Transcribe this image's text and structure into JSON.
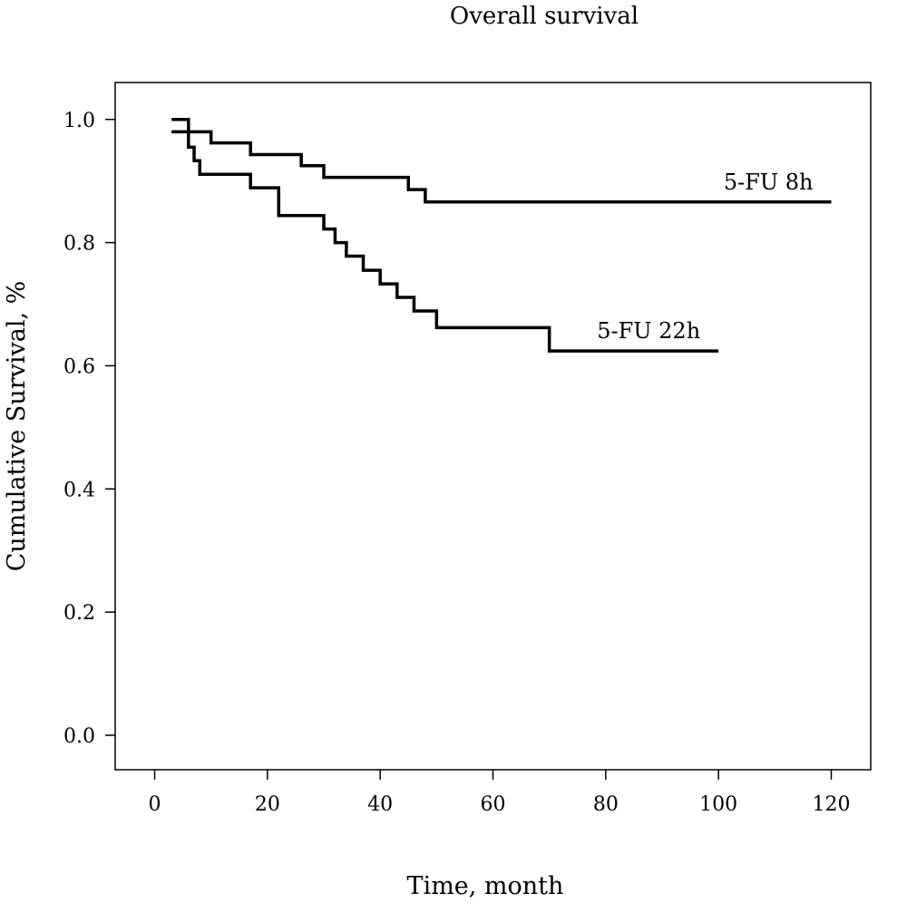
{
  "chart_data": {
    "type": "line",
    "title": "Overall survival",
    "xlabel": "Time, month",
    "ylabel": "Cumulative Survival, %",
    "xlim": [
      -7,
      127
    ],
    "ylim": [
      -0.056,
      1.06
    ],
    "x_ticks": [
      0,
      20,
      40,
      60,
      80,
      100,
      120
    ],
    "y_ticks": [
      0.0,
      0.2,
      0.4,
      0.6,
      0.8,
      1.0
    ],
    "x_tick_labels": [
      "0",
      "20",
      "40",
      "60",
      "80",
      "100",
      "120"
    ],
    "y_tick_labels": [
      "0.0",
      "0.2",
      "0.4",
      "0.6",
      "0.8",
      "1.0"
    ],
    "grid": false,
    "line_color": "#000000",
    "series": [
      {
        "name": "5-FU 8h",
        "step": true,
        "x": [
          3,
          6,
          10,
          17,
          26,
          30,
          45,
          48,
          120
        ],
        "y": [
          0.98,
          0.98,
          0.962,
          0.943,
          0.925,
          0.906,
          0.886,
          0.866,
          0.866
        ]
      },
      {
        "name": "5-FU 22h",
        "step": true,
        "x": [
          3,
          6,
          7,
          8,
          17,
          22,
          30,
          32,
          34,
          37,
          40,
          43,
          46,
          50,
          70,
          100
        ],
        "y": [
          1.0,
          0.955,
          0.933,
          0.911,
          0.889,
          0.844,
          0.822,
          0.8,
          0.778,
          0.755,
          0.733,
          0.711,
          0.689,
          0.662,
          0.624,
          0.624
        ]
      }
    ]
  }
}
